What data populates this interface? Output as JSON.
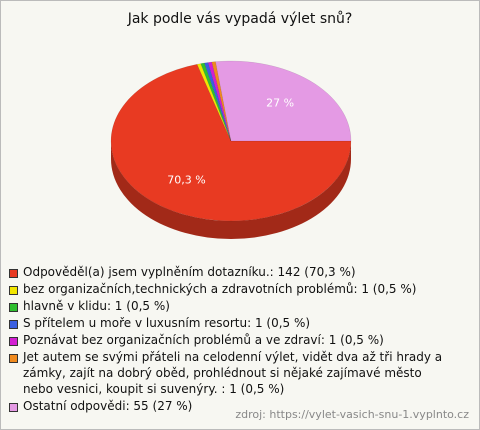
{
  "chart_data": {
    "type": "pie",
    "title": "Jak podle vás vypadá výlet snů?",
    "categories": [
      "Odpověděl(a) jsem vyplněním dotazníku.: 142 (70,3 %)",
      "bez organizačních,technických a zdravotních problémů: 1 (0,5 %)",
      "hlavně v klidu: 1 (0,5 %)",
      "S přítelem u moře v luxusním resortu: 1 (0,5 %)",
      "Poznávat bez organizačních problémů a ve zdraví: 1 (0,5 %)",
      "Jet  autem se svými přáteli na celodenní výlet, vidět dva až tři hrady a zámky, zajít na dobrý oběd, prohlédnout si nějaké zajímavé město nebo vesnici, koupit si suvenýry. : 1 (0,5 %)",
      "Ostatní odpovědi: 55 (27 %)"
    ],
    "values": [
      70.3,
      0.5,
      0.5,
      0.5,
      0.5,
      0.5,
      27
    ],
    "value_labels": [
      "70,3 %",
      null,
      null,
      null,
      null,
      null,
      "27 %"
    ],
    "colors": [
      "#e83a22",
      "#f2e600",
      "#2fbf2f",
      "#3b5fe0",
      "#d21fd2",
      "#f08a1e",
      "#e49ae4"
    ],
    "legend": "bottom",
    "source": "zdroj: https://vylet-vasich-snu-1.vyplnto.cz"
  }
}
